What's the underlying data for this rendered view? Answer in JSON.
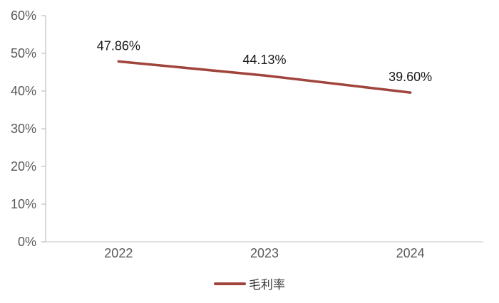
{
  "chart_data": {
    "type": "line",
    "title": "",
    "xlabel": "",
    "ylabel": "",
    "categories": [
      "2022",
      "2023",
      "2024"
    ],
    "series": [
      {
        "name": "毛利率",
        "values": [
          47.86,
          44.13,
          39.6
        ],
        "data_labels": [
          "47.86%",
          "44.13%",
          "39.60%"
        ],
        "color": "#A0443C"
      }
    ],
    "ylim": [
      0,
      60
    ],
    "ytick_step": 10,
    "ytick_labels": [
      "0%",
      "10%",
      "20%",
      "30%",
      "40%",
      "50%",
      "60%"
    ],
    "grid": false,
    "legend_position": "bottom-center",
    "legend": {
      "label": "毛利率",
      "swatch_color": "#A0443C"
    },
    "colors": {
      "axis_line": "#BFBFBF",
      "baseline": "#D9D9D9",
      "tick_label": "#595959",
      "data_label": "#1A1A1A",
      "legend_text": "#333333",
      "background": "#FFFFFF"
    }
  }
}
